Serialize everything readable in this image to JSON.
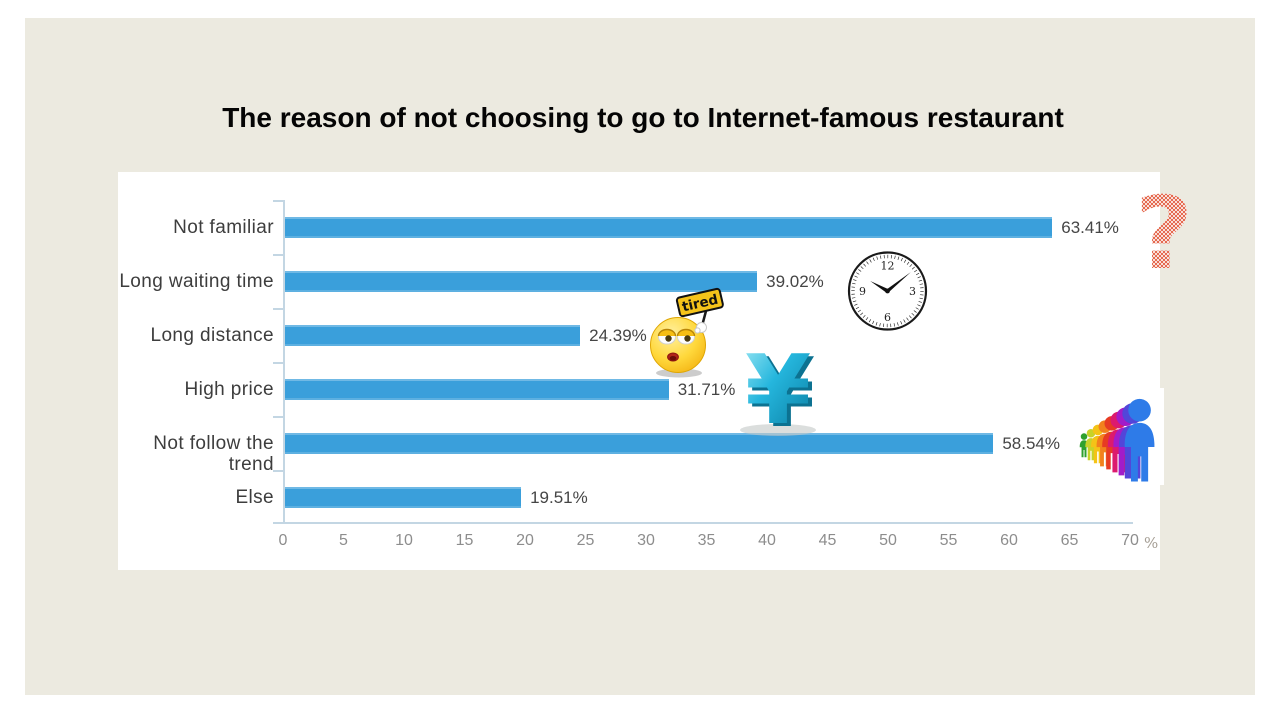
{
  "slide": {
    "title": "The reason of not choosing to go to Internet-famous restaurant",
    "background_color": "#ECEAE0"
  },
  "chart_data": {
    "type": "bar",
    "orientation": "horizontal",
    "title": "The reason of not choosing to go to Internet-famous restaurant",
    "categories": [
      "Not familiar",
      "Long waiting time",
      "Long distance",
      "High price",
      "Not follow the trend",
      "Else"
    ],
    "values": [
      63.41,
      39.02,
      24.39,
      31.71,
      58.54,
      19.51
    ],
    "value_labels": [
      "63.41%",
      "39.02%",
      "24.39%",
      "31.71%",
      "58.54%",
      "19.51%"
    ],
    "x_ticks": [
      "0",
      "5",
      "10",
      "15",
      "20",
      "25",
      "30",
      "35",
      "40",
      "45",
      "50",
      "55",
      "60",
      "65",
      "70"
    ],
    "x_unit": "%",
    "xlim": [
      0,
      70
    ],
    "grid": false,
    "legend_position": "none",
    "bar_color": "#3A9FDB",
    "axis_color": "#C3D6E3",
    "category_label_color": "#3D3D3D",
    "value_label_color": "#454545",
    "tick_label_color": "#8D8D8D"
  },
  "decorations": {
    "question_mark": {
      "glyph": "?",
      "color": "#E56A50"
    },
    "clock": {
      "numerals": [
        "12",
        "3",
        "6",
        "9"
      ],
      "time_shown": "10:08"
    },
    "tired_emoji": {
      "sign_text": "tired",
      "sign_color": "#F5C31A",
      "face_color": "#FFD21E"
    },
    "yen_symbol": {
      "glyph": "¥",
      "color": "#17A9CE"
    },
    "people": {
      "colors": [
        "#2FA12E",
        "#C8D229",
        "#F4C317",
        "#F2811D",
        "#E73B23",
        "#DC1A6E",
        "#A21CC9",
        "#5346D9",
        "#2E7BE8"
      ]
    }
  }
}
